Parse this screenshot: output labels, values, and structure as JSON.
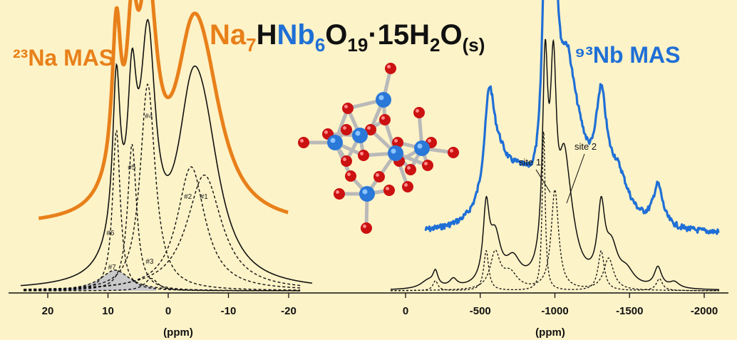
{
  "title": {
    "parts": [
      {
        "text": "Na",
        "role": "base",
        "color": "#e8801a"
      },
      {
        "text": "7",
        "role": "sub",
        "color": "#e8801a"
      },
      {
        "text": "H",
        "role": "base",
        "color": "#111111"
      },
      {
        "text": "Nb",
        "role": "base",
        "color": "#1f6fd6"
      },
      {
        "text": "6",
        "role": "sub",
        "color": "#1f6fd6"
      },
      {
        "text": "O",
        "role": "base",
        "color": "#111111"
      },
      {
        "text": "19",
        "role": "sub",
        "color": "#111111"
      },
      {
        "text": "·15H",
        "role": "base",
        "color": "#111111"
      },
      {
        "text": "2",
        "role": "sub",
        "color": "#111111"
      },
      {
        "text": "O",
        "role": "base",
        "color": "#111111"
      },
      {
        "text": "(s)",
        "role": "sub",
        "color": "#111111"
      }
    ]
  },
  "molecule": {
    "niobium_color": "#2a78d8",
    "oxygen_color": "#cc1111",
    "bond_color": "#b9b9b9"
  },
  "chart_data": [
    {
      "type": "line",
      "title": "²³Na MAS",
      "title_color": "#e8801a",
      "xlabel": "(ppm)",
      "xlim": [
        25,
        -25
      ],
      "xticks": [
        20,
        10,
        0,
        -10,
        -20
      ],
      "xtick_labels": [
        "20",
        "10",
        "0",
        "-10",
        "-20"
      ],
      "series": [
        {
          "style": "experimental",
          "color": "#e8801a"
        },
        {
          "style": "fit-total",
          "color": "#111111"
        },
        {
          "style": "components",
          "color": "#111111",
          "dashed": true
        }
      ],
      "components": [
        {
          "label": "#1",
          "center": -6.0,
          "height": 0.56,
          "width": 3.5
        },
        {
          "label": "#2",
          "center": -3.8,
          "height": 0.6,
          "width": 2.8
        },
        {
          "label": "#3",
          "center": 2.8,
          "height": 0.06,
          "width": 1.3
        },
        {
          "label": "#4",
          "center": 3.4,
          "height": 1.0,
          "width": 1.5
        },
        {
          "label": "#5",
          "center": 6.0,
          "height": 0.71,
          "width": 0.9
        },
        {
          "label": "#6",
          "center": 8.6,
          "height": 0.78,
          "width": 0.75
        },
        {
          "label": "#7",
          "center": 8.8,
          "height": 0.1,
          "width": 3.0
        }
      ]
    },
    {
      "type": "line",
      "title": "⁹³Nb MAS",
      "title_color": "#1f6fd6",
      "xlabel": "(ppm)",
      "xlim": [
        250,
        -2100
      ],
      "xticks": [
        0,
        -500,
        -1000,
        -1500,
        -2000
      ],
      "xtick_labels": [
        "0",
        "-500",
        "-1000",
        "-1500",
        "-2000"
      ],
      "series": [
        {
          "style": "experimental",
          "color": "#1f6fd6"
        },
        {
          "style": "fit-total",
          "color": "#111111"
        },
        {
          "name": "site 1",
          "style": "component",
          "color": "#111111",
          "dashed": true
        },
        {
          "name": "site 2",
          "style": "component",
          "color": "#111111",
          "dashed": true
        }
      ],
      "annotations": [
        "site 1",
        "site 2"
      ],
      "sidebands_ppm": [
        -210,
        -560,
        -940,
        -1000,
        -1320,
        -1700
      ]
    }
  ]
}
